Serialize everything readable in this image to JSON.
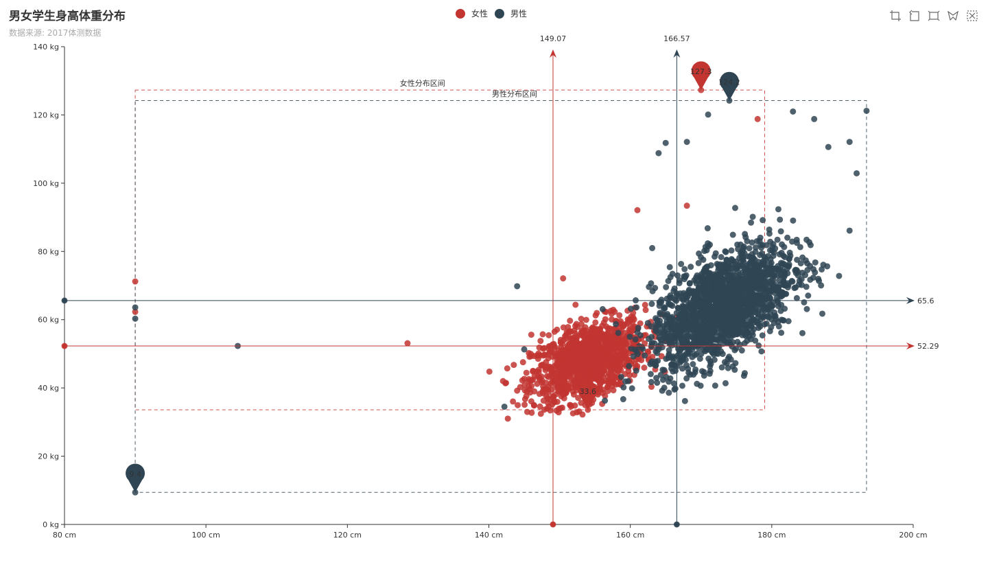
{
  "header": {
    "title": "男女学生身高体重分布",
    "subtitle": "数据来源: 2017体测数据"
  },
  "legend": [
    {
      "name": "女性",
      "color": "#c23531"
    },
    {
      "name": "男性",
      "color": "#2f4554"
    }
  ],
  "toolbox": [
    "zoom-icon",
    "zoom-reset-icon",
    "restore-icon",
    "select-icon",
    "clear-select-icon"
  ],
  "chart_data": {
    "type": "scatter",
    "title": "男女学生身高体重分布",
    "subtitle": "数据来源: 2017体测数据",
    "xlim": [
      80,
      200
    ],
    "ylim": [
      0,
      140
    ],
    "x_ticks": [
      80,
      100,
      120,
      140,
      160,
      180,
      200
    ],
    "y_ticks": [
      0,
      20,
      40,
      60,
      80,
      100,
      120,
      140
    ],
    "x_unit": "cm",
    "y_unit": "kg",
    "grid": false,
    "legend_position": "top-center",
    "series": [
      {
        "name": "女性",
        "color": "#c23531",
        "center": [
          154,
          48
        ],
        "spread": [
          4,
          6
        ],
        "count": 1200,
        "outliers": [
          [
            90,
            71.2
          ],
          [
            90,
            62.3
          ],
          [
            128.5,
            53.1
          ],
          [
            80,
            52.29
          ],
          [
            149.07,
            0
          ],
          [
            150.5,
            72.1
          ],
          [
            144,
            39.2
          ],
          [
            146,
            55.6
          ],
          [
            168,
            93.4
          ],
          [
            170,
            127.3
          ],
          [
            178,
            118.8
          ],
          [
            161,
            92.1
          ],
          [
            154,
            33.6
          ]
        ],
        "mark_points": [
          {
            "label": "127.3",
            "x": 170,
            "y": 127.3
          },
          {
            "label": "33.6",
            "x": 154,
            "y": 33.6
          }
        ],
        "mark_lines": {
          "x_avg": "149.07",
          "x_avg_value": 149.07,
          "y_avg": "52.29",
          "y_avg_value": 52.29
        },
        "mark_area": {
          "label": "女性分布区间",
          "x": [
            90,
            179
          ],
          "y": [
            33.6,
            127.3
          ]
        }
      },
      {
        "name": "男性",
        "color": "#2f4554",
        "center": [
          173,
          64
        ],
        "spread": [
          5,
          9
        ],
        "count": 1800,
        "outliers": [
          [
            90,
            63.6
          ],
          [
            90,
            60.3
          ],
          [
            104.5,
            52.3
          ],
          [
            80,
            65.6
          ],
          [
            166.57,
            0
          ],
          [
            144,
            69.8
          ],
          [
            142.2,
            34.5
          ],
          [
            145,
            51.3
          ],
          [
            159,
            36.7
          ],
          [
            174,
            124.2
          ],
          [
            193.4,
            121.2
          ],
          [
            191,
            112.1
          ],
          [
            188,
            110.6
          ],
          [
            186,
            118.8
          ],
          [
            183,
            121.0
          ],
          [
            171,
            120.1
          ],
          [
            164,
            108.8
          ],
          [
            165,
            111.8
          ],
          [
            168,
            112.1
          ],
          [
            192,
            102.9
          ],
          [
            191,
            86.1
          ],
          [
            90,
            9.4
          ]
        ],
        "mark_points": [
          {
            "label": "124.2",
            "x": 174,
            "y": 124.2
          },
          {
            "label": "9.4",
            "x": 90,
            "y": 9.4
          }
        ],
        "mark_lines": {
          "x_avg": "166.57",
          "x_avg_value": 166.57,
          "y_avg": "65.6",
          "y_avg_value": 65.6
        },
        "mark_area": {
          "label": "男性分布区间",
          "x": [
            90,
            193.4
          ],
          "y": [
            9.4,
            124.2
          ]
        }
      }
    ]
  }
}
